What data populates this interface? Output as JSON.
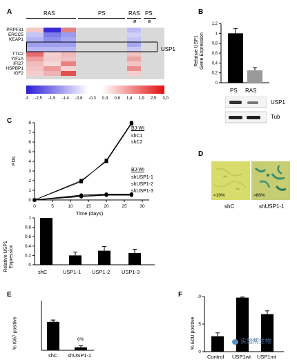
{
  "panel_letters": {
    "a": "A",
    "b": "B",
    "c": "C",
    "d": "D",
    "e": "E",
    "f": "F"
  },
  "heatmap": {
    "col_groups": [
      "RAS",
      "PS",
      "RAS",
      "PS"
    ],
    "col_sub": [
      "ø",
      "ø"
    ],
    "genes": [
      "PRPF31",
      "ERCC5",
      "KEAP1",
      "",
      "USP1",
      "TTC2",
      "YIF1A",
      "IFI27",
      "HSPBP1",
      "IGF2"
    ],
    "box_label": "USP1",
    "scale_ticks": [
      "-3",
      "-2,5",
      "-1,9",
      "-1,4",
      "-0,8",
      "-0,3",
      "0,3",
      "0,8",
      "1,4",
      "1,9",
      "2,5",
      "3,0"
    ]
  },
  "panelB": {
    "ylabel": "Relative USP1\nGene Expression",
    "yticks": [
      "0",
      "0,2",
      "0,4",
      "0,6",
      "0,8",
      "1",
      "1,2"
    ],
    "categories": [
      "PS",
      "RAS"
    ],
    "values": [
      1.0,
      0.25
    ],
    "wb_labels": [
      "USP1",
      "Tub"
    ]
  },
  "panelC": {
    "ylabel": "PDs",
    "xlabel": "Time (days)",
    "yticks": [
      "0",
      "1",
      "2",
      "3",
      "4",
      "5",
      "6",
      "7",
      "8"
    ],
    "xticks": [
      "0",
      "5",
      "10",
      "15",
      "20",
      "25",
      "30"
    ],
    "series_labels": [
      "BJ-WI",
      "shC1",
      "shC2",
      "BJ-WI",
      "shUSP1-1",
      "shUSP1-2",
      "shUSP1-3"
    ],
    "bar_ylabel": "Relative USP1\nExpression",
    "bar_yticks": [
      "0",
      "0,2",
      "0,4",
      "0,6",
      "0,8",
      "1"
    ],
    "bar_categories": [
      "shC",
      "USP1-1",
      "USP1-2",
      "USP1-3"
    ]
  },
  "panelD": {
    "img_labels": [
      "<10%",
      ">80%"
    ],
    "captions": [
      "shC",
      "shUSP1-1"
    ]
  },
  "panelE": {
    "ylabel": "% Ki67 positive",
    "categories": [
      "shC",
      "shUSP1-1"
    ],
    "value_labels": [
      "57%",
      "6%"
    ]
  },
  "panelF": {
    "ylabel": "% EdU positive",
    "yticks": [
      "0",
      "5",
      "10"
    ],
    "categories": [
      "Control",
      "USP1wt",
      "USP1mt"
    ],
    "watermark": "实验帮生物"
  },
  "chart_data": [
    {
      "type": "bar",
      "title": "",
      "xlabel": "",
      "ylabel": "Relative USP1 Gene Expression",
      "categories": [
        "PS",
        "RAS"
      ],
      "values": [
        1.0,
        0.25
      ],
      "ylim": [
        0,
        1.2
      ]
    },
    {
      "type": "line",
      "title": "",
      "xlabel": "Time (days)",
      "ylabel": "PDs",
      "xlim": [
        0,
        30
      ],
      "ylim": [
        0,
        8
      ],
      "series": [
        {
          "name": "shC1",
          "x": [
            0,
            13,
            20,
            27
          ],
          "y": [
            0,
            2.0,
            4.0,
            7.9
          ]
        },
        {
          "name": "shC2",
          "x": [
            0,
            13,
            20,
            27
          ],
          "y": [
            0,
            1.9,
            4.1,
            8.0
          ]
        },
        {
          "name": "shUSP1-1",
          "x": [
            0,
            13,
            20,
            27
          ],
          "y": [
            0,
            0.5,
            0.6,
            0.6
          ]
        },
        {
          "name": "shUSP1-2",
          "x": [
            0,
            13,
            20,
            27
          ],
          "y": [
            0,
            0.4,
            0.55,
            0.55
          ]
        },
        {
          "name": "shUSP1-3",
          "x": [
            0,
            13,
            20,
            27
          ],
          "y": [
            0,
            0.35,
            0.5,
            0.5
          ]
        }
      ]
    },
    {
      "type": "bar",
      "title": "",
      "xlabel": "",
      "ylabel": "Relative USP1 Expression",
      "categories": [
        "shC",
        "USP1-1",
        "USP1-2",
        "USP1-3"
      ],
      "values": [
        1.0,
        0.2,
        0.3,
        0.25
      ],
      "ylim": [
        0,
        1
      ]
    },
    {
      "type": "bar",
      "title": "",
      "xlabel": "",
      "ylabel": "% Ki67 positive",
      "categories": [
        "shC",
        "shUSP1-1"
      ],
      "values": [
        57,
        6
      ]
    },
    {
      "type": "bar",
      "title": "",
      "xlabel": "",
      "ylabel": "% EdU positive",
      "categories": [
        "Control",
        "USP1wt",
        "USP1mt"
      ],
      "values": [
        2.8,
        9.8,
        6.8
      ],
      "ylim": [
        0,
        10
      ]
    }
  ]
}
